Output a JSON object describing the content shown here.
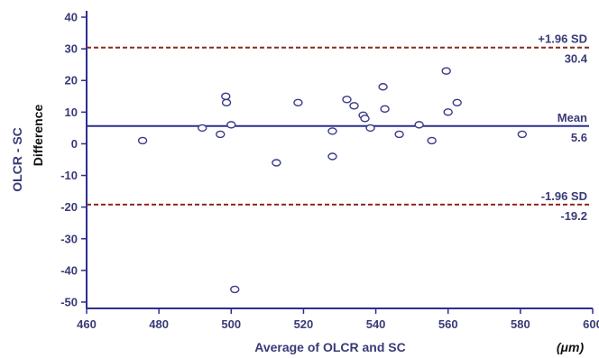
{
  "chart_data": {
    "type": "scatter",
    "x_label": "Average of OLCR and SC",
    "x_unit": "(μm)",
    "y_label_primary": "OLCR - SC",
    "y_label_secondary": "Difference",
    "xlim": [
      460,
      600
    ],
    "ylim": [
      -52,
      42
    ],
    "x_ticks": [
      460,
      480,
      500,
      520,
      540,
      560,
      580,
      600
    ],
    "y_ticks": [
      40,
      30,
      20,
      10,
      0,
      -10,
      -20,
      -30,
      -40,
      -50
    ],
    "grid": false,
    "reference_lines": [
      {
        "label": "+1.96 SD",
        "value": 30.4,
        "value_label": "30.4",
        "style": "dashed",
        "color": "#8b2a1e"
      },
      {
        "label": "Mean",
        "value": 5.6,
        "value_label": "5.6",
        "style": "solid",
        "color": "#2b2f8f"
      },
      {
        "label": "-1.96 SD",
        "value": -19.2,
        "value_label": "-19.2",
        "style": "dashed",
        "color": "#8b2a1e"
      }
    ],
    "points": [
      {
        "x": 475.5,
        "y": 1
      },
      {
        "x": 492,
        "y": 5
      },
      {
        "x": 497,
        "y": 3
      },
      {
        "x": 498.5,
        "y": 15
      },
      {
        "x": 498.7,
        "y": 13
      },
      {
        "x": 500,
        "y": 6
      },
      {
        "x": 501,
        "y": -46
      },
      {
        "x": 512.5,
        "y": -6
      },
      {
        "x": 518.5,
        "y": 13
      },
      {
        "x": 528,
        "y": 4
      },
      {
        "x": 528,
        "y": -4
      },
      {
        "x": 532,
        "y": 14
      },
      {
        "x": 534,
        "y": 12
      },
      {
        "x": 536.5,
        "y": 9
      },
      {
        "x": 537,
        "y": 8
      },
      {
        "x": 538.5,
        "y": 5
      },
      {
        "x": 542,
        "y": 18
      },
      {
        "x": 542.5,
        "y": 11
      },
      {
        "x": 546.5,
        "y": 3
      },
      {
        "x": 552,
        "y": 6
      },
      {
        "x": 555.5,
        "y": 1
      },
      {
        "x": 559.5,
        "y": 23
      },
      {
        "x": 560,
        "y": 10
      },
      {
        "x": 562.5,
        "y": 13
      },
      {
        "x": 580.5,
        "y": 3
      }
    ]
  },
  "colors": {
    "axis": "#2b2f8f",
    "text": "#3a3a78",
    "marker": "#3a3a8a",
    "limit_line": "#8b2a1e",
    "mean_line": "#2b2f8f"
  }
}
